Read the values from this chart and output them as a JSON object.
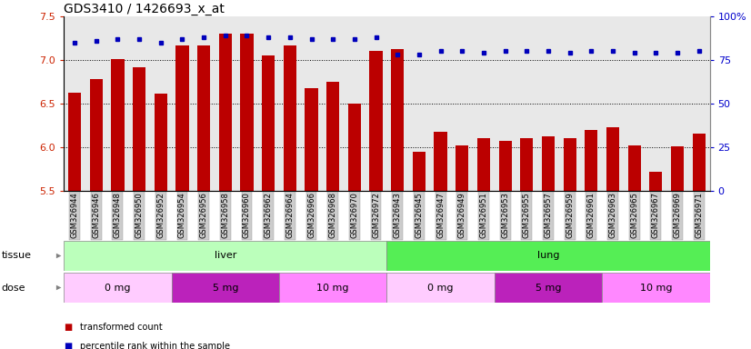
{
  "title": "GDS3410 / 1426693_x_at",
  "samples": [
    "GSM326944",
    "GSM326946",
    "GSM326948",
    "GSM326950",
    "GSM326952",
    "GSM326954",
    "GSM326956",
    "GSM326958",
    "GSM326960",
    "GSM326962",
    "GSM326964",
    "GSM326966",
    "GSM326968",
    "GSM326970",
    "GSM326972",
    "GSM326943",
    "GSM326945",
    "GSM326947",
    "GSM326949",
    "GSM326951",
    "GSM326953",
    "GSM326955",
    "GSM326957",
    "GSM326959",
    "GSM326961",
    "GSM326963",
    "GSM326965",
    "GSM326967",
    "GSM326969",
    "GSM326971"
  ],
  "bar_values": [
    6.62,
    6.78,
    7.01,
    6.92,
    6.61,
    7.17,
    7.17,
    7.3,
    7.3,
    7.05,
    7.17,
    6.68,
    6.75,
    6.5,
    7.1,
    7.12,
    5.95,
    6.18,
    6.02,
    6.1,
    6.07,
    6.1,
    6.12,
    6.1,
    6.2,
    6.23,
    6.02,
    5.72,
    6.01,
    6.16
  ],
  "percentile_values": [
    85,
    86,
    87,
    87,
    85,
    87,
    88,
    89,
    89,
    88,
    88,
    87,
    87,
    87,
    88,
    78,
    78,
    80,
    80,
    79,
    80,
    80,
    80,
    79,
    80,
    80,
    79,
    79,
    79,
    80
  ],
  "ylim_left": [
    5.5,
    7.5
  ],
  "ylim_right": [
    0,
    100
  ],
  "yticks_left": [
    5.5,
    6.0,
    6.5,
    7.0,
    7.5
  ],
  "yticks_right": [
    0,
    25,
    50,
    75,
    100
  ],
  "bar_color": "#bb0000",
  "dot_color": "#0000bb",
  "background_color": "#dddddd",
  "plot_bg": "#e8e8e8",
  "tissue_groups": [
    {
      "label": "liver",
      "start": 0,
      "end": 15,
      "color": "#bbffbb"
    },
    {
      "label": "lung",
      "start": 15,
      "end": 30,
      "color": "#55ee55"
    }
  ],
  "dose_groups": [
    {
      "label": "0 mg",
      "start": 0,
      "end": 5,
      "color": "#ffccff"
    },
    {
      "label": "5 mg",
      "start": 5,
      "end": 10,
      "color": "#cc33cc"
    },
    {
      "label": "10 mg",
      "start": 10,
      "end": 15,
      "color": "#ff99ff"
    },
    {
      "label": "0 mg",
      "start": 15,
      "end": 20,
      "color": "#ffccff"
    },
    {
      "label": "5 mg",
      "start": 20,
      "end": 25,
      "color": "#cc33cc"
    },
    {
      "label": "10 mg",
      "start": 25,
      "end": 30,
      "color": "#ff99ff"
    }
  ],
  "legend_bar": "transformed count",
  "legend_dot": "percentile rank within the sample",
  "title_fontsize": 10,
  "tick_fontsize": 6,
  "band_label_fontsize": 8,
  "legend_fontsize": 7,
  "bar_width": 0.6
}
